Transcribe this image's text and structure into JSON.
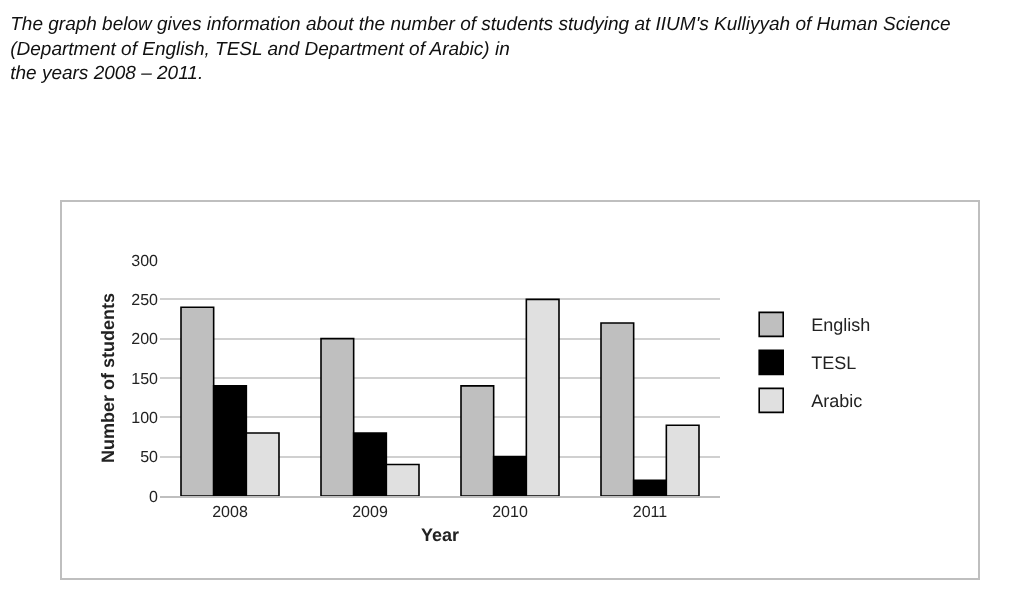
{
  "chart_data": {
    "type": "bar",
    "title": "The graph below gives information about the number of students studying at IIUM's Kulliyyah of Human Science\n(Department of English, TESL and Department of Arabic) in\nthe years 2008 – 2011.",
    "xlabel": "Year",
    "ylabel": "Number of students",
    "categories": [
      "2008",
      "2009",
      "2010",
      "2011"
    ],
    "series": [
      {
        "name": "English",
        "color": "#bfbfbf",
        "values": [
          240,
          200,
          140,
          220
        ]
      },
      {
        "name": "TESL",
        "color": "#000000",
        "values": [
          140,
          80,
          50,
          20
        ]
      },
      {
        "name": "Arabic",
        "color": "#e0e0e0",
        "values": [
          80,
          40,
          250,
          90
        ]
      }
    ],
    "ylim": [
      0,
      300
    ],
    "yticks": [
      0,
      50,
      100,
      150,
      200,
      250,
      300
    ],
    "grid": "y",
    "legend": "right"
  }
}
